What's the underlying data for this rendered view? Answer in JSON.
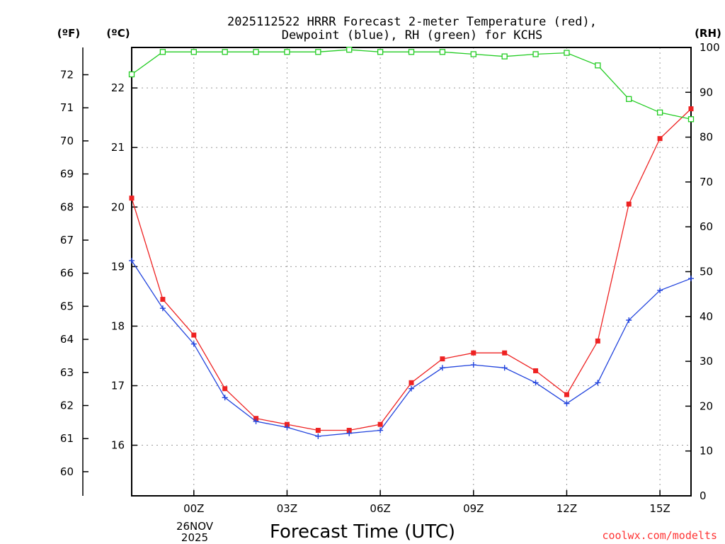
{
  "chart_data": {
    "type": "line",
    "title_line1": "2025112522 HRRR Forecast 2-meter Temperature (red),",
    "title_line2": "Dewpoint (blue), RH (green) for KCHS",
    "xlabel": "Forecast Time (UTC)",
    "date_line1": "26NOV",
    "date_line2": "2025",
    "credit": "coolwx.com/modelts",
    "units": {
      "fahrenheit": "(ºF)",
      "celsius": "(ºC)",
      "rh": "(RH)"
    },
    "x": [
      22,
      23,
      24,
      25,
      26,
      27,
      28,
      29,
      30,
      31,
      32,
      33,
      34,
      35,
      36,
      37,
      38,
      39,
      40
    ],
    "x_range": [
      22,
      40
    ],
    "x_ticks": [
      {
        "x": 24,
        "label": "00Z"
      },
      {
        "x": 27,
        "label": "03Z"
      },
      {
        "x": 30,
        "label": "06Z"
      },
      {
        "x": 33,
        "label": "09Z"
      },
      {
        "x": 36,
        "label": "12Z"
      },
      {
        "x": 39,
        "label": "15Z"
      }
    ],
    "celsius_range": [
      15.15,
      22.68
    ],
    "celsius_ticks": [
      "16",
      "17",
      "18",
      "19",
      "20",
      "21",
      "22"
    ],
    "fahrenheit_ticks": [
      "60",
      "61",
      "62",
      "63",
      "64",
      "65",
      "66",
      "67",
      "68",
      "69",
      "70",
      "71",
      "72"
    ],
    "rh_range": [
      0,
      100
    ],
    "rh_ticks": [
      "0",
      "10",
      "20",
      "30",
      "40",
      "50",
      "60",
      "70",
      "80",
      "90",
      "100"
    ],
    "grid": true,
    "series": [
      {
        "name": "Temperature",
        "axis": "celsius",
        "color": "#ee2222",
        "marker": "filled-square",
        "values": [
          20.15,
          18.45,
          17.85,
          16.95,
          16.45,
          16.35,
          16.25,
          16.25,
          16.35,
          17.05,
          17.45,
          17.55,
          17.55,
          17.25,
          16.85,
          17.75,
          20.05,
          21.15,
          21.65
        ]
      },
      {
        "name": "Dewpoint",
        "axis": "celsius",
        "color": "#2244dd",
        "marker": "plus",
        "values": [
          19.1,
          18.3,
          17.7,
          16.8,
          16.4,
          16.3,
          16.15,
          16.2,
          16.25,
          16.95,
          17.3,
          17.35,
          17.3,
          17.05,
          16.7,
          17.05,
          18.1,
          18.6,
          18.8
        ]
      },
      {
        "name": "RH",
        "axis": "rh",
        "color": "#22cc22",
        "marker": "open-square",
        "values": [
          94,
          99,
          99,
          99,
          99,
          99,
          99,
          99.5,
          99,
          99,
          99,
          98.5,
          98,
          98.5,
          98.8,
          96,
          88.5,
          85.5,
          84
        ]
      }
    ]
  }
}
